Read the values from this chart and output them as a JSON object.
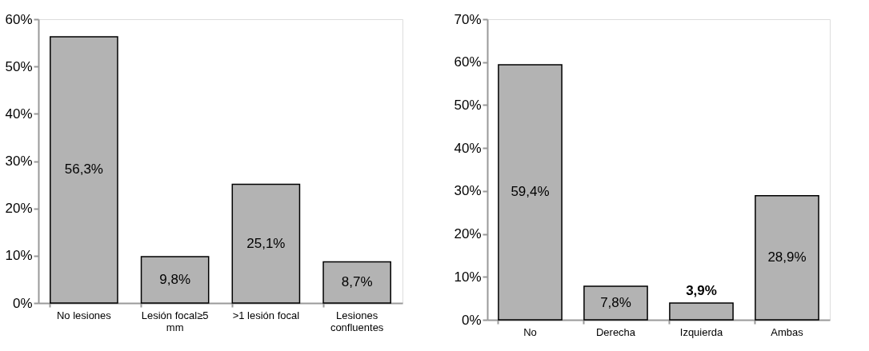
{
  "chart_data": [
    {
      "type": "bar",
      "categories": [
        "No lesiones",
        "Lesión focal≥5 mm",
        ">1 lesión focal",
        "Lesiones confluentes"
      ],
      "values": [
        56.3,
        9.8,
        25.1,
        8.7
      ],
      "value_labels": [
        "56,3%",
        "9,8%",
        "25,1%",
        "8,7%"
      ],
      "color": "#b3b3b3",
      "ylim": [
        0,
        60
      ],
      "yticks": [
        {
          "value": 0,
          "label": "0%"
        },
        {
          "value": 10,
          "label": "10%"
        },
        {
          "value": 20,
          "label": "20%"
        },
        {
          "value": 30,
          "label": "30%"
        },
        {
          "value": 40,
          "label": "40%"
        },
        {
          "value": 50,
          "label": "50%"
        },
        {
          "value": 60,
          "label": "60%"
        }
      ],
      "grid": false
    },
    {
      "type": "bar",
      "categories": [
        "No",
        "Derecha",
        "Izquierda",
        "Ambas"
      ],
      "values": [
        59.4,
        7.8,
        3.9,
        28.9
      ],
      "value_labels": [
        "59,4%",
        "7,8%",
        "3,9%",
        "28,9%"
      ],
      "color": "#b3b3b3",
      "ylim": [
        0,
        70
      ],
      "yticks": [
        {
          "value": 0,
          "label": "0%"
        },
        {
          "value": 10,
          "label": "10%"
        },
        {
          "value": 20,
          "label": "20%"
        },
        {
          "value": 30,
          "label": "30%"
        },
        {
          "value": 40,
          "label": "40%"
        },
        {
          "value": 50,
          "label": "50%"
        },
        {
          "value": 60,
          "label": "60%"
        },
        {
          "value": 70,
          "label": "70%"
        }
      ],
      "grid": false
    }
  ]
}
